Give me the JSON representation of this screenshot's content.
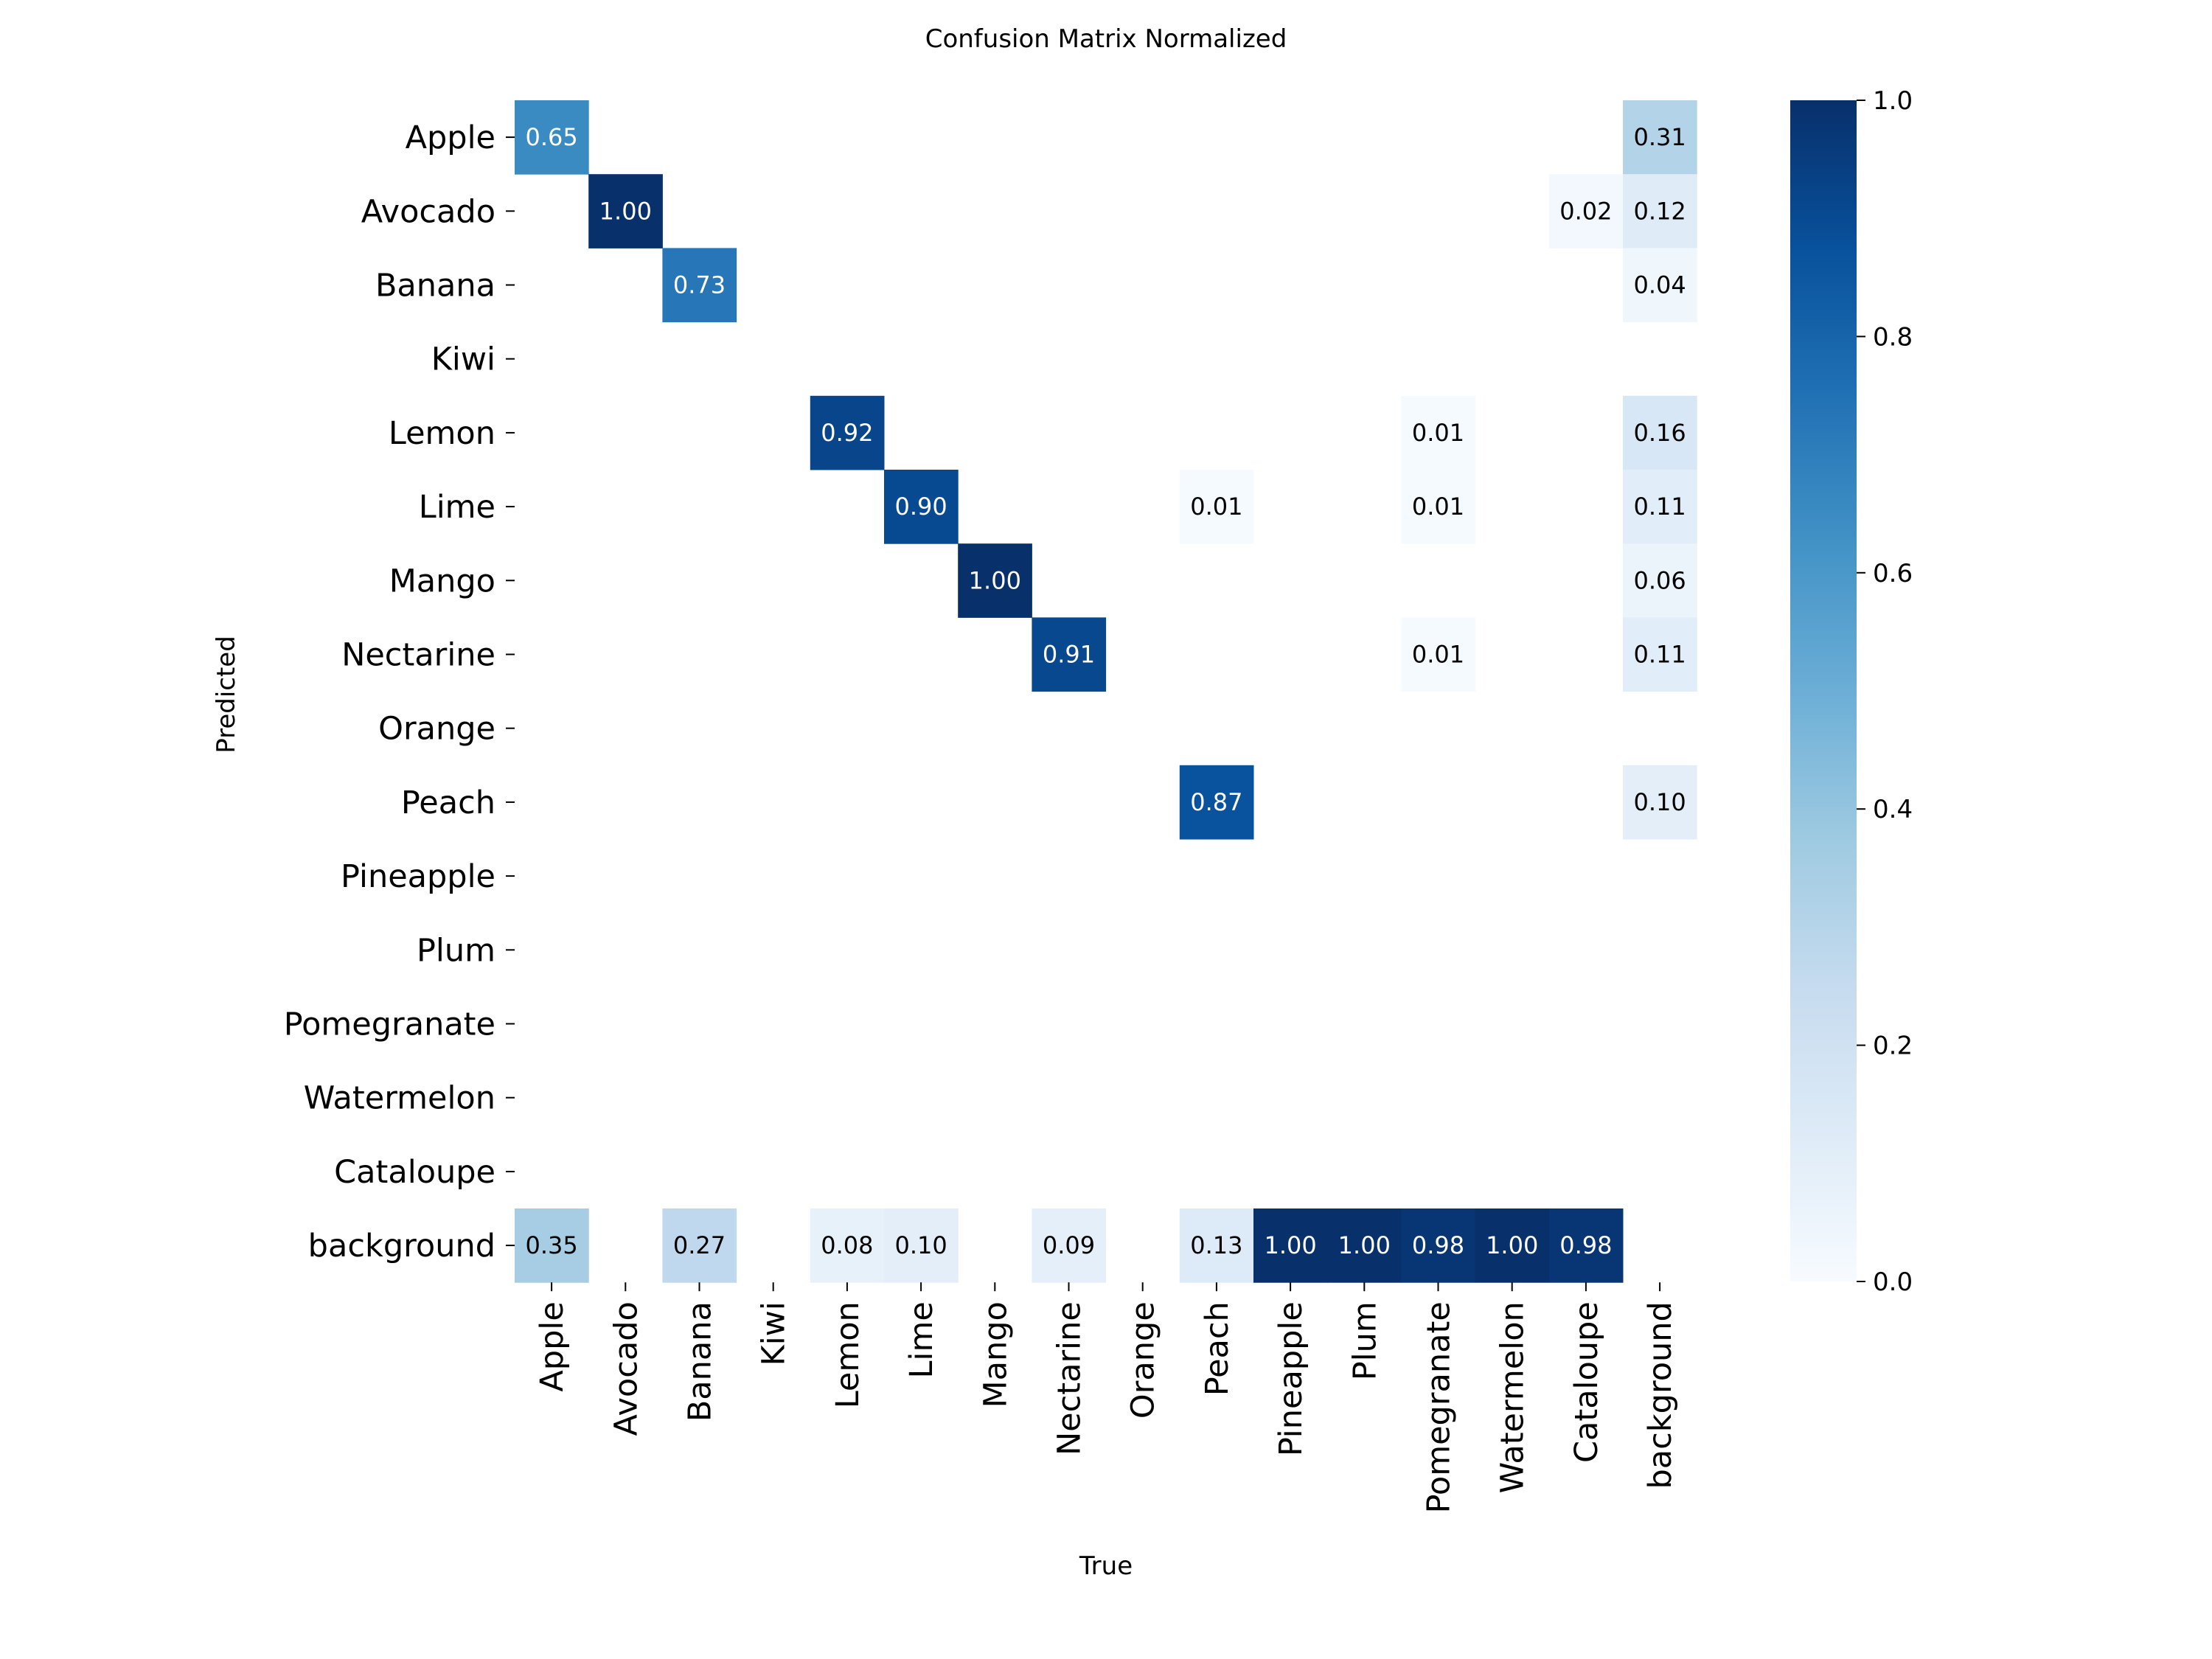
{
  "chart_data": {
    "type": "heatmap",
    "title": "Confusion Matrix Normalized",
    "xlabel": "True",
    "ylabel": "Predicted",
    "x_categories": [
      "Apple",
      "Avocado",
      "Banana",
      "Kiwi",
      "Lemon",
      "Lime",
      "Mango",
      "Nectarine",
      "Orange",
      "Peach",
      "Pineapple",
      "Plum",
      "Pomegranate",
      "Watermelon",
      "Cataloupe",
      "background"
    ],
    "y_categories": [
      "Apple",
      "Avocado",
      "Banana",
      "Kiwi",
      "Lemon",
      "Lime",
      "Mango",
      "Nectarine",
      "Orange",
      "Peach",
      "Pineapple",
      "Plum",
      "Pomegranate",
      "Watermelon",
      "Cataloupe",
      "background"
    ],
    "cells": [
      {
        "row": 0,
        "col": 0,
        "value": 0.65,
        "label": "0.65"
      },
      {
        "row": 0,
        "col": 15,
        "value": 0.31,
        "label": "0.31"
      },
      {
        "row": 1,
        "col": 1,
        "value": 1.0,
        "label": "1.00"
      },
      {
        "row": 1,
        "col": 14,
        "value": 0.02,
        "label": "0.02"
      },
      {
        "row": 1,
        "col": 15,
        "value": 0.12,
        "label": "0.12"
      },
      {
        "row": 2,
        "col": 2,
        "value": 0.73,
        "label": "0.73"
      },
      {
        "row": 2,
        "col": 15,
        "value": 0.04,
        "label": "0.04"
      },
      {
        "row": 4,
        "col": 4,
        "value": 0.92,
        "label": "0.92"
      },
      {
        "row": 4,
        "col": 12,
        "value": 0.01,
        "label": "0.01"
      },
      {
        "row": 4,
        "col": 15,
        "value": 0.16,
        "label": "0.16"
      },
      {
        "row": 5,
        "col": 5,
        "value": 0.9,
        "label": "0.90"
      },
      {
        "row": 5,
        "col": 9,
        "value": 0.01,
        "label": "0.01"
      },
      {
        "row": 5,
        "col": 12,
        "value": 0.01,
        "label": "0.01"
      },
      {
        "row": 5,
        "col": 15,
        "value": 0.11,
        "label": "0.11"
      },
      {
        "row": 6,
        "col": 6,
        "value": 1.0,
        "label": "1.00"
      },
      {
        "row": 6,
        "col": 15,
        "value": 0.06,
        "label": "0.06"
      },
      {
        "row": 7,
        "col": 7,
        "value": 0.91,
        "label": "0.91"
      },
      {
        "row": 7,
        "col": 12,
        "value": 0.01,
        "label": "0.01"
      },
      {
        "row": 7,
        "col": 15,
        "value": 0.11,
        "label": "0.11"
      },
      {
        "row": 9,
        "col": 9,
        "value": 0.87,
        "label": "0.87"
      },
      {
        "row": 9,
        "col": 15,
        "value": 0.1,
        "label": "0.10"
      },
      {
        "row": 15,
        "col": 0,
        "value": 0.35,
        "label": "0.35"
      },
      {
        "row": 15,
        "col": 2,
        "value": 0.27,
        "label": "0.27"
      },
      {
        "row": 15,
        "col": 4,
        "value": 0.08,
        "label": "0.08"
      },
      {
        "row": 15,
        "col": 5,
        "value": 0.1,
        "label": "0.10"
      },
      {
        "row": 15,
        "col": 7,
        "value": 0.09,
        "label": "0.09"
      },
      {
        "row": 15,
        "col": 9,
        "value": 0.13,
        "label": "0.13"
      },
      {
        "row": 15,
        "col": 10,
        "value": 1.0,
        "label": "1.00"
      },
      {
        "row": 15,
        "col": 11,
        "value": 1.0,
        "label": "1.00"
      },
      {
        "row": 15,
        "col": 12,
        "value": 0.98,
        "label": "0.98"
      },
      {
        "row": 15,
        "col": 13,
        "value": 1.0,
        "label": "1.00"
      },
      {
        "row": 15,
        "col": 14,
        "value": 0.98,
        "label": "0.98"
      }
    ],
    "colorbar": {
      "range": [
        0.0,
        1.0
      ],
      "ticks": [
        0.0,
        0.2,
        0.4,
        0.6,
        0.8,
        1.0
      ],
      "tick_labels": [
        "0.0",
        "0.2",
        "0.4",
        "0.6",
        "0.8",
        "1.0"
      ],
      "colormap": "Blues"
    },
    "grid": false,
    "legend": "none"
  }
}
